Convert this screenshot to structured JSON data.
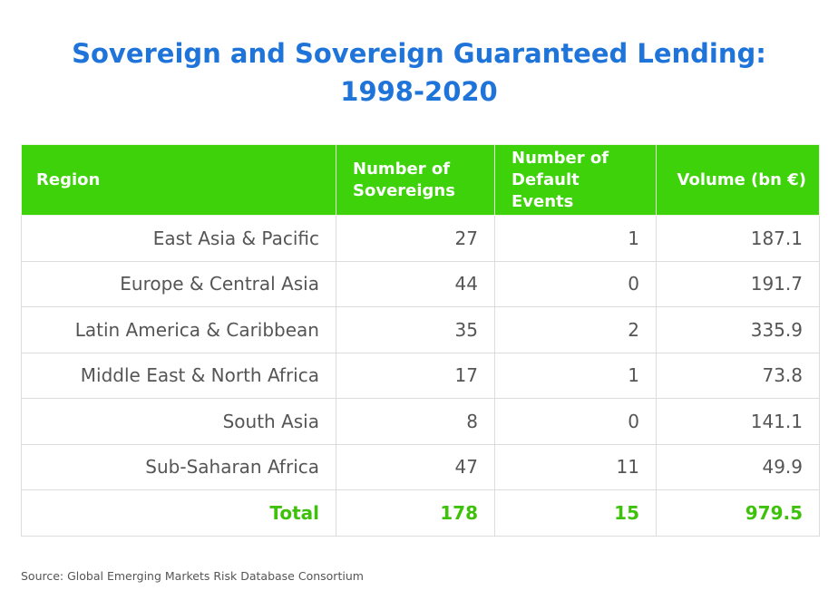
{
  "chart_data": {
    "type": "table",
    "title": "Sovereign and Sovereign Guaranteed Lending:",
    "subtitle": "1998-2020",
    "columns": [
      "Region",
      "Number of Sovereigns",
      "Number of Default Events",
      "Volume (bn €)"
    ],
    "rows": [
      {
        "region": "East Asia & Pacific",
        "sovereigns": "27",
        "defaults": "1",
        "volume": "187.1"
      },
      {
        "region": "Europe & Central Asia",
        "sovereigns": "44",
        "defaults": "0",
        "volume": "191.7"
      },
      {
        "region": "Latin America & Caribbean",
        "sovereigns": "35",
        "defaults": "2",
        "volume": "335.9"
      },
      {
        "region": "Middle East & North Africa",
        "sovereigns": "17",
        "defaults": "1",
        "volume": "73.8"
      },
      {
        "region": "South Asia",
        "sovereigns": "8",
        "defaults": "0",
        "volume": "141.1"
      },
      {
        "region": "Sub-Saharan Africa",
        "sovereigns": "47",
        "defaults": "11",
        "volume": "49.9"
      }
    ],
    "total": {
      "region": "Total",
      "sovereigns": "178",
      "defaults": "15",
      "volume": "979.5"
    },
    "header": {
      "region": "Region",
      "sovereigns_line1": "Number of",
      "sovereigns_line2": "Sovereigns",
      "defaults_line1": "Number of",
      "defaults_line2": "Default Events",
      "volume": "Volume (bn €)"
    },
    "source": "Source: Global Emerging Markets Risk Database Consortium",
    "colors": {
      "title": "#1f74d9",
      "header_bg": "#3ed20a",
      "header_text": "#ffffff",
      "body_text": "#555555",
      "total_text": "#3ec10b"
    }
  }
}
